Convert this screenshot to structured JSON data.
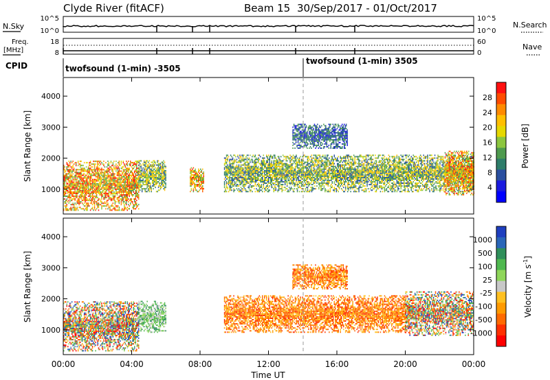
{
  "header": {
    "station": "Clyde River (fitACF)",
    "beam": "Beam 15",
    "date_range": "30/Sep/2017 - 01/Oct/2017"
  },
  "noise_panel": {
    "left_label": "N.Sky",
    "right_label": "N.Search",
    "left_ticks": [
      "10^5",
      "10^0"
    ],
    "right_ticks": [
      "10^5",
      "10^0"
    ]
  },
  "freq_panel": {
    "left_label_1": "Freq.",
    "left_label_2": "[MHz]",
    "right_label": "Nave",
    "left_ticks": [
      "18",
      "8"
    ],
    "right_ticks": [
      "60",
      "0"
    ]
  },
  "cpid": {
    "label": "CPID",
    "program_1": "twofsound (1-min) -3505",
    "program_2": "twofsound (1-min) 3505",
    "switch_hour": 14.0
  },
  "chart_data": [
    {
      "type": "heatmap",
      "name": "power",
      "ylabel": "Slant Range [km]",
      "y_ticks": [
        "1000",
        "2000",
        "3000",
        "4000"
      ],
      "ylim": [
        200,
        4600
      ],
      "xlim": [
        0,
        24
      ],
      "colorbar_label": "Power [dB]",
      "colorbar_ticks": [
        "28",
        "24",
        "20",
        "16",
        "12",
        "8",
        "4"
      ],
      "colorbar_colors": [
        "#ff1010",
        "#ff4c00",
        "#ff8a00",
        "#ffbf00",
        "#e6d800",
        "#8cc63f",
        "#4e9a4e",
        "#2e7d6a",
        "#2a4fa0",
        "#1a1adf",
        "#0000ff"
      ],
      "range_bands": [
        {
          "start": 0.0,
          "end": 4.4,
          "low": 300,
          "high": 1900,
          "level": "high"
        },
        {
          "start": 4.4,
          "end": 6.0,
          "low": 900,
          "high": 1900,
          "level": "mid"
        },
        {
          "start": 7.4,
          "end": 8.2,
          "low": 900,
          "high": 1700,
          "level": "high"
        },
        {
          "start": 9.4,
          "end": 24.0,
          "low": 900,
          "high": 2100,
          "level": "mid"
        },
        {
          "start": 13.4,
          "end": 16.6,
          "low": 2300,
          "high": 3100,
          "level": "low"
        },
        {
          "start": 22.3,
          "end": 24.0,
          "low": 800,
          "high": 2200,
          "level": "high"
        }
      ]
    },
    {
      "type": "heatmap",
      "name": "velocity",
      "ylabel": "Slant Range [km]",
      "y_ticks": [
        "1000",
        "2000",
        "3000",
        "4000"
      ],
      "ylim": [
        200,
        4600
      ],
      "xlim": [
        0,
        24
      ],
      "xlabel": "Time UT",
      "x_ticks": [
        "00:00",
        "04:00",
        "08:00",
        "12:00",
        "16:00",
        "20:00",
        "00:00"
      ],
      "colorbar_label": "Velocity [m s^-1]",
      "colorbar_ticks": [
        "1000",
        "500",
        "100",
        "25",
        "-25",
        "-100",
        "-500",
        "-1000"
      ],
      "colorbar_colors": [
        "#1f3fbf",
        "#2a66b8",
        "#2f8f5a",
        "#4fb84f",
        "#8fd65a",
        "#c8c8c8",
        "#ffc020",
        "#ff9a00",
        "#ff6a00",
        "#ff3000",
        "#ff0000"
      ],
      "range_bands": [
        {
          "start": 0.0,
          "end": 4.4,
          "low": 300,
          "high": 1900,
          "level": "mixed"
        },
        {
          "start": 4.4,
          "end": 6.0,
          "low": 900,
          "high": 1900,
          "level": "positive"
        },
        {
          "start": 9.4,
          "end": 20.0,
          "low": 900,
          "high": 2100,
          "level": "negative"
        },
        {
          "start": 13.4,
          "end": 16.6,
          "low": 2300,
          "high": 3100,
          "level": "negative"
        },
        {
          "start": 20.0,
          "end": 24.0,
          "low": 800,
          "high": 2200,
          "level": "mixed"
        }
      ]
    }
  ]
}
